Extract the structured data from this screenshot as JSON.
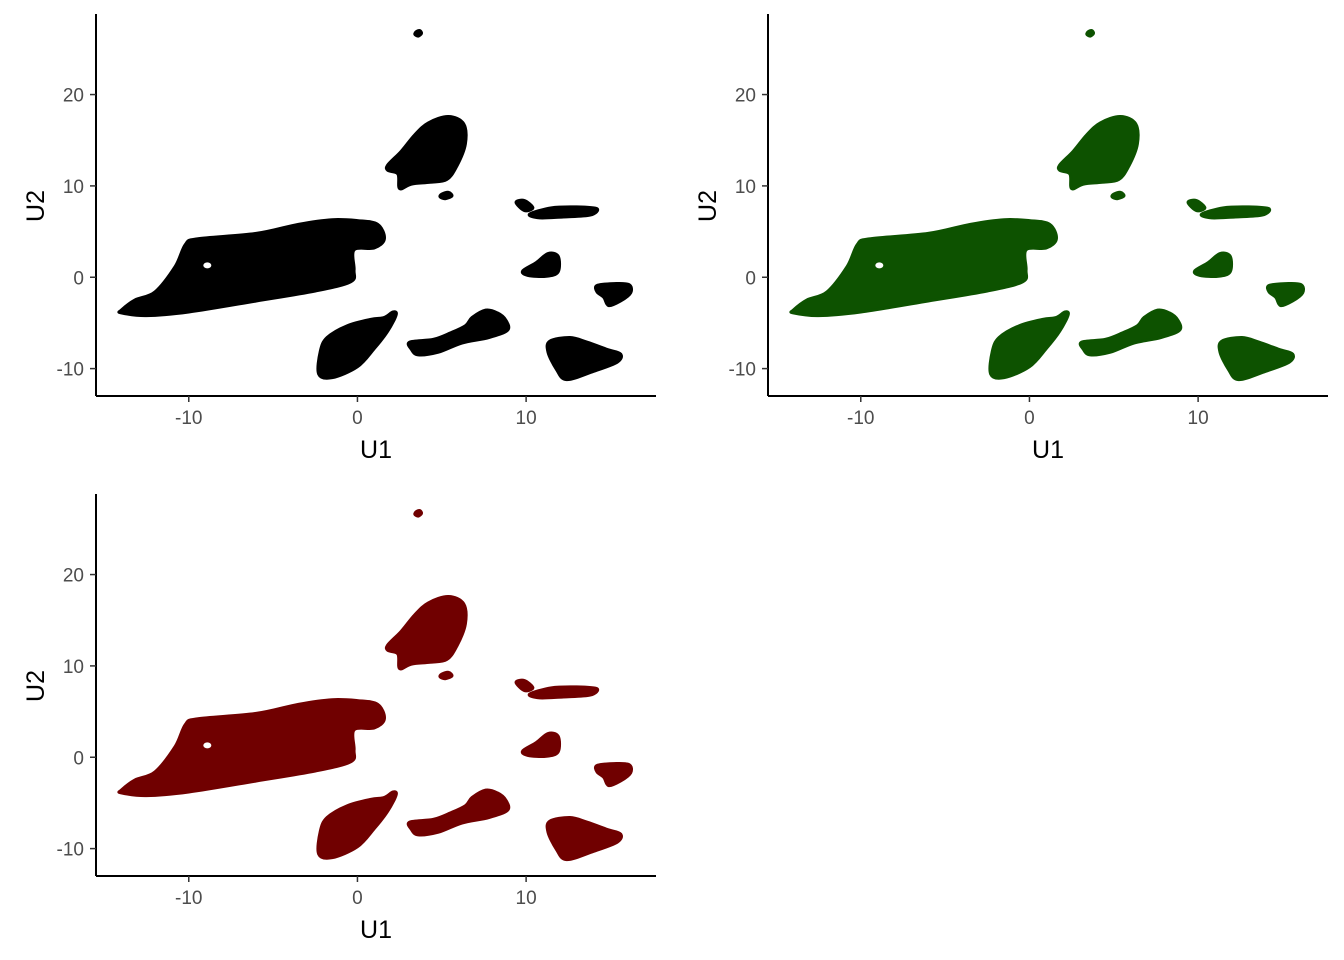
{
  "chart_data": [
    {
      "type": "scatter",
      "panel": "top-left",
      "title": "",
      "xlabel": "U1",
      "ylabel": "U2",
      "xlim": [
        -15.5,
        17.7
      ],
      "ylim": [
        -13,
        28.6
      ],
      "x_ticks": [
        -10,
        0,
        10
      ],
      "y_ticks": [
        -10,
        0,
        10,
        20
      ],
      "x_tick_labels": [
        "-10",
        "0",
        "10"
      ],
      "y_tick_labels": [
        "-10",
        "0",
        "10",
        "20"
      ],
      "color": "#000000",
      "grid": false,
      "legend": "none"
    },
    {
      "type": "scatter",
      "panel": "top-right",
      "title": "",
      "xlabel": "U1",
      "ylabel": "U2",
      "xlim": [
        -15.5,
        17.7
      ],
      "ylim": [
        -13,
        28.6
      ],
      "x_ticks": [
        -10,
        0,
        10
      ],
      "y_ticks": [
        -10,
        0,
        10,
        20
      ],
      "x_tick_labels": [
        "-10",
        "0",
        "10"
      ],
      "y_tick_labels": [
        "-10",
        "0",
        "10",
        "20"
      ],
      "color": "#0d5200",
      "grid": false,
      "legend": "none"
    },
    {
      "type": "scatter",
      "panel": "bottom-left",
      "title": "",
      "xlabel": "U1",
      "ylabel": "U2",
      "xlim": [
        -15.5,
        17.7
      ],
      "ylim": [
        -13,
        28.6
      ],
      "x_ticks": [
        -10,
        0,
        10
      ],
      "y_ticks": [
        -10,
        0,
        10,
        20
      ],
      "x_tick_labels": [
        "-10",
        "0",
        "10"
      ],
      "y_tick_labels": [
        "-10",
        "0",
        "10",
        "20"
      ],
      "color": "#700000",
      "grid": false,
      "legend": "none"
    }
  ],
  "clusters": [
    {
      "id": "main",
      "points": [
        [
          -14,
          -3.6
        ],
        [
          -13.2,
          -2.5
        ],
        [
          -12,
          -1.6
        ],
        [
          -10.8,
          1.2
        ],
        [
          -10.2,
          3.6
        ],
        [
          -9.5,
          4.2
        ],
        [
          -6,
          4.8
        ],
        [
          -3.5,
          5.8
        ],
        [
          -1.5,
          6.3
        ],
        [
          0,
          6.2
        ],
        [
          1.2,
          5.8
        ],
        [
          1.6,
          4.2
        ],
        [
          1,
          3.2
        ],
        [
          -0.2,
          3
        ],
        [
          -0.2,
          0.8
        ],
        [
          -0.4,
          -0.5
        ],
        [
          -2.5,
          -1.5
        ],
        [
          -6,
          -2.6
        ],
        [
          -10,
          -3.8
        ],
        [
          -12.5,
          -4.2
        ],
        [
          -14,
          -3.9
        ]
      ]
    },
    {
      "id": "top",
      "points": [
        [
          1.8,
          12.3
        ],
        [
          2.6,
          13.8
        ],
        [
          3.4,
          15.6
        ],
        [
          4.2,
          16.9
        ],
        [
          5.4,
          17.6
        ],
        [
          6.3,
          16.8
        ],
        [
          6.4,
          14.6
        ],
        [
          5.9,
          12.2
        ],
        [
          5.3,
          10.7
        ],
        [
          4.3,
          10.4
        ],
        [
          3.2,
          10.2
        ],
        [
          2.5,
          9.7
        ],
        [
          2.4,
          11.3
        ],
        [
          1.8,
          11.7
        ]
      ]
    },
    {
      "id": "top-small",
      "points": [
        [
          5,
          9.1
        ],
        [
          5.4,
          9.3
        ],
        [
          5.6,
          8.9
        ],
        [
          5.2,
          8.6
        ],
        [
          4.9,
          8.8
        ]
      ]
    },
    {
      "id": "lone-point",
      "points": [
        [
          3.5,
          26.9
        ],
        [
          3.7,
          27
        ],
        [
          3.8,
          26.7
        ],
        [
          3.6,
          26.4
        ],
        [
          3.4,
          26.6
        ]
      ]
    },
    {
      "id": "bottom-left",
      "points": [
        [
          -2.2,
          -8.1
        ],
        [
          -1.8,
          -6.6
        ],
        [
          -0.6,
          -5.3
        ],
        [
          0.8,
          -4.6
        ],
        [
          1.6,
          -4.4
        ],
        [
          2.1,
          -3.8
        ],
        [
          2.3,
          -4.1
        ],
        [
          1.8,
          -5.9
        ],
        [
          1,
          -7.8
        ],
        [
          0,
          -9.8
        ],
        [
          -1.5,
          -11
        ],
        [
          -2.3,
          -10.6
        ]
      ]
    },
    {
      "id": "bottom-mid",
      "points": [
        [
          3.1,
          -7.1
        ],
        [
          4.5,
          -6.8
        ],
        [
          5.5,
          -6.1
        ],
        [
          6.4,
          -5.3
        ],
        [
          6.8,
          -4.4
        ],
        [
          7.6,
          -3.6
        ],
        [
          8.3,
          -3.9
        ],
        [
          8.8,
          -4.7
        ],
        [
          8.9,
          -5.8
        ],
        [
          7.8,
          -6.6
        ],
        [
          6.2,
          -7.2
        ],
        [
          4.8,
          -8.2
        ],
        [
          3.6,
          -8.5
        ],
        [
          3.2,
          -7.9
        ]
      ]
    },
    {
      "id": "right-bar",
      "points": [
        [
          10.2,
          6.9
        ],
        [
          11.5,
          7.6
        ],
        [
          13,
          7.7
        ],
        [
          14.2,
          7.5
        ],
        [
          13.8,
          6.8
        ],
        [
          12.2,
          6.6
        ],
        [
          10.8,
          6.5
        ]
      ]
    },
    {
      "id": "right-bar-tail",
      "points": [
        [
          9.4,
          8.2
        ],
        [
          9.9,
          8.4
        ],
        [
          10.4,
          7.6
        ],
        [
          9.9,
          7.3
        ]
      ]
    },
    {
      "id": "right-mid",
      "points": [
        [
          9.8,
          0.7
        ],
        [
          10.6,
          1.6
        ],
        [
          11.3,
          2.6
        ],
        [
          11.9,
          2.3
        ],
        [
          11.9,
          0.6
        ],
        [
          11.2,
          0.1
        ],
        [
          10.1,
          0.2
        ]
      ]
    },
    {
      "id": "far-right",
      "points": [
        [
          14.2,
          -0.9
        ],
        [
          15.2,
          -0.7
        ],
        [
          16.1,
          -0.8
        ],
        [
          16.2,
          -1.7
        ],
        [
          15.6,
          -2.6
        ],
        [
          14.9,
          -3.1
        ],
        [
          14.6,
          -2.2
        ],
        [
          14.2,
          -1.6
        ]
      ]
    },
    {
      "id": "bottom-right",
      "points": [
        [
          11.4,
          -7
        ],
        [
          12.6,
          -6.6
        ],
        [
          13.6,
          -7.1
        ],
        [
          14.8,
          -7.9
        ],
        [
          15.6,
          -8.4
        ],
        [
          15.4,
          -9.3
        ],
        [
          14,
          -10.3
        ],
        [
          12.4,
          -11.2
        ],
        [
          11.8,
          -10.1
        ],
        [
          11.3,
          -8.2
        ]
      ]
    }
  ]
}
